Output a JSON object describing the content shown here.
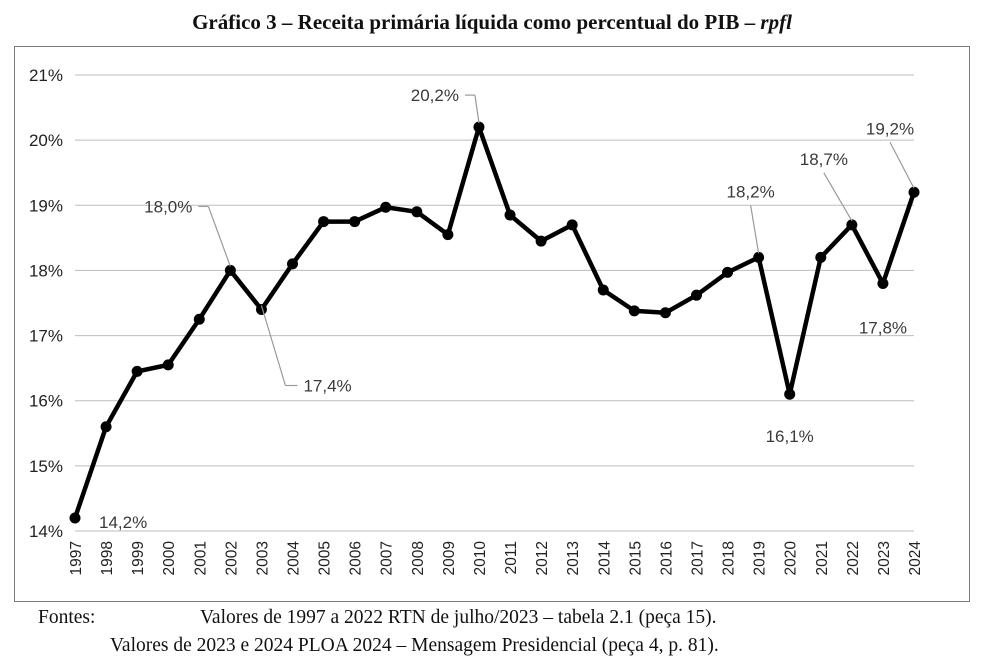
{
  "title": "Gráfico 3 – Receita primária líquida como percentual do PIB – ",
  "title_italic": "rpfl",
  "chart_data": {
    "type": "line",
    "categories": [
      "1997",
      "1998",
      "1999",
      "2000",
      "2001",
      "2002",
      "2003",
      "2004",
      "2005",
      "2006",
      "2007",
      "2008",
      "2009",
      "2010",
      "2011",
      "2012",
      "2013",
      "2014",
      "2015",
      "2016",
      "2017",
      "2018",
      "2019",
      "2020",
      "2021",
      "2022",
      "2023",
      "2024"
    ],
    "series": [
      {
        "values": [
          14.2,
          15.6,
          16.45,
          16.55,
          17.25,
          18.0,
          17.4,
          18.1,
          18.75,
          18.75,
          18.97,
          18.9,
          18.55,
          20.2,
          18.85,
          18.45,
          18.7,
          17.7,
          17.38,
          17.35,
          17.62,
          17.97,
          18.2,
          16.1,
          18.2,
          18.7,
          17.8,
          19.2
        ],
        "color": "#000000"
      }
    ],
    "ylim": [
      14,
      21
    ],
    "yticks": [
      "14%",
      "15%",
      "16%",
      "17%",
      "18%",
      "19%",
      "20%",
      "21%"
    ],
    "grid": true,
    "annotations": [
      {
        "category": "1997",
        "text": "14,2%"
      },
      {
        "category": "2002",
        "text": "18,0%"
      },
      {
        "category": "2003",
        "text": "17,4%"
      },
      {
        "category": "2010",
        "text": "20,2%"
      },
      {
        "category": "2019",
        "text": "18,2%"
      },
      {
        "category": "2020",
        "text": "16,1%"
      },
      {
        "category": "2022",
        "text": "18,7%"
      },
      {
        "category": "2023",
        "text": "17,8%"
      },
      {
        "category": "2024",
        "text": "19,2%"
      }
    ]
  },
  "sources": {
    "label": "Fontes:",
    "line1": "Valores de 1997 a 2022 RTN de julho/2023 – tabela 2.1 (peça 15).",
    "line2": "Valores de 2023 e 2024 PLOA 2024 – Mensagem Presidencial (peça 4, p. 81)."
  }
}
